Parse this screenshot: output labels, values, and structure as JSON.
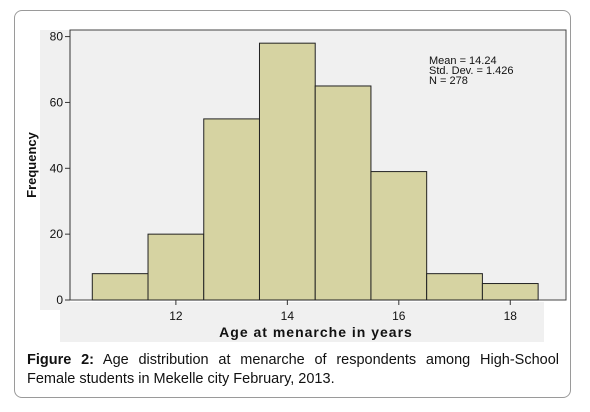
{
  "chart_data": {
    "type": "bar",
    "xlabel": "Age at menarche in years",
    "ylabel": "Frequency",
    "x_ticks": [
      12,
      14,
      16,
      18
    ],
    "y_ticks": [
      0,
      20,
      40,
      60,
      80
    ],
    "xlim": [
      10.1,
      19.0
    ],
    "ylim": [
      0,
      82
    ],
    "bins": [
      {
        "start": 10.5,
        "end": 11.5,
        "value": 8
      },
      {
        "start": 11.5,
        "end": 12.5,
        "value": 20
      },
      {
        "start": 12.5,
        "end": 13.5,
        "value": 55
      },
      {
        "start": 13.5,
        "end": 14.5,
        "value": 78
      },
      {
        "start": 14.5,
        "end": 15.5,
        "value": 65
      },
      {
        "start": 15.5,
        "end": 16.5,
        "value": 39
      },
      {
        "start": 16.5,
        "end": 17.5,
        "value": 8
      },
      {
        "start": 17.5,
        "end": 18.5,
        "value": 5
      }
    ],
    "stats": [
      "Mean = 14.24",
      "Std. Dev. = 1.426",
      "N = 278"
    ],
    "colors": {
      "bar_fill": "#d6d3a2",
      "bar_stroke": "#222222",
      "plot_bg": "#f0f0f0",
      "axis": "#333333"
    }
  },
  "caption": {
    "label": "Figure 2:",
    "text": " Age distribution at menarche of respondents among High-School Female students in Mekelle city February, 2013."
  }
}
